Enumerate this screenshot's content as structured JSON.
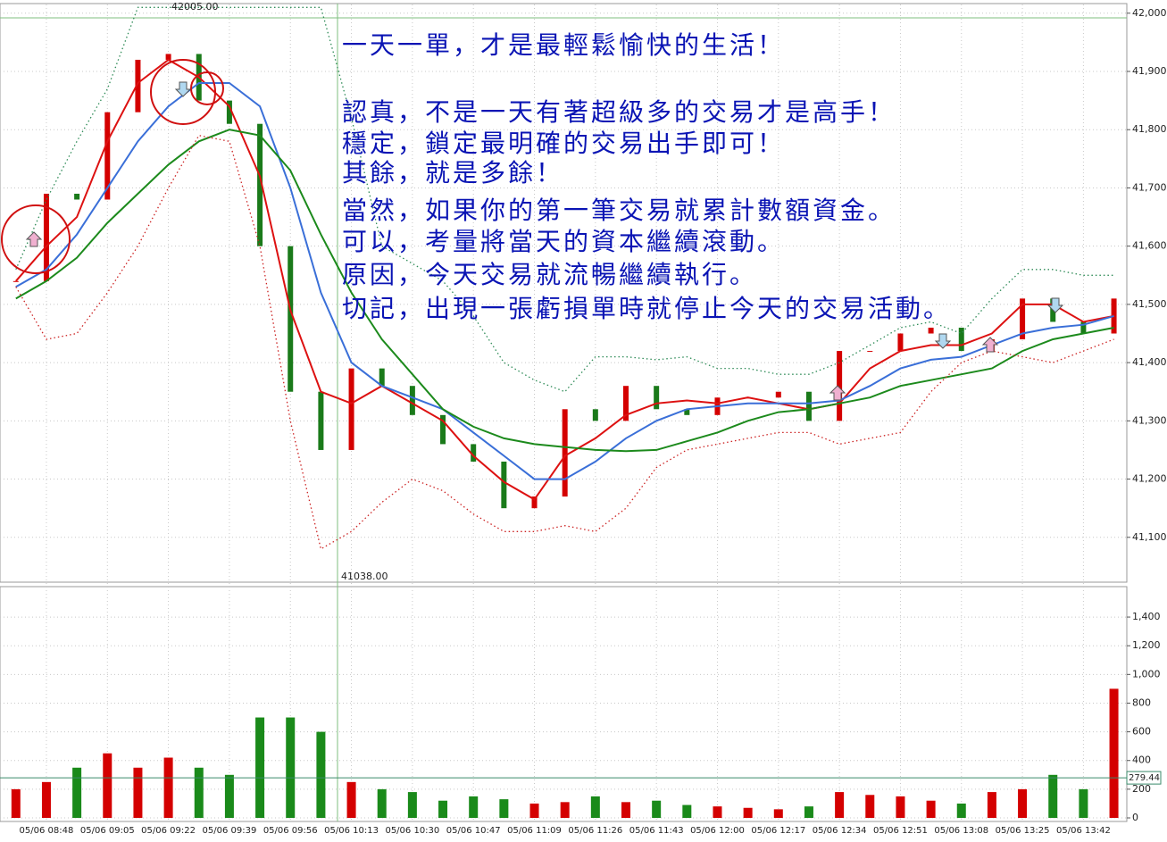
{
  "chart_data": [
    {
      "type": "line",
      "ylim": [
        41023,
        42015
      ],
      "yticks": [
        {
          "value": 41100,
          "label": "41,100"
        },
        {
          "value": 41200,
          "label": "41,200"
        },
        {
          "value": 41300,
          "label": "41,300"
        },
        {
          "value": 41400,
          "label": "41,400"
        },
        {
          "value": 41500,
          "label": "41,500"
        },
        {
          "value": 41600,
          "label": "41,600"
        },
        {
          "value": 41700,
          "label": "41,700"
        },
        {
          "value": 41800,
          "label": "41,800"
        },
        {
          "value": 41900,
          "label": "41,900"
        },
        {
          "value": 42000,
          "label": "42,000"
        }
      ],
      "grid": true,
      "high_label": "42005.00",
      "low_label": "41038.00",
      "annotations": [
        "一天一單，才是最輕鬆愉快的生活！",
        "認真，不是一天有著超級多的交易才是高手！",
        "穩定，鎖定最明確的交易出手即可！",
        "其餘，就是多餘！",
        "當然，如果你的第一筆交易就累計數額資金。",
        "可以，考量將當天的資本繼續滾動。",
        "原因，今天交易就流暢繼續執行。",
        "切記，出現一張虧損單時就停止今天的交易活動。"
      ],
      "series": [
        {
          "color": "#1a7a1a",
          "style": "candle",
          "values": [
            41540,
            41690,
            41680,
            41830,
            41920,
            41930,
            41850,
            41810,
            41600,
            41350,
            41250,
            41390,
            41360,
            41310,
            41260,
            41230,
            41150,
            41170,
            41320,
            41300,
            41360,
            41320,
            41310,
            41340,
            41340,
            41350,
            41300,
            41420,
            41420,
            41450,
            41460,
            41420,
            41440,
            41510,
            41470,
            41450,
            41510
          ]
        },
        {
          "color": "#dd1111",
          "style": "solid",
          "values": [
            41540,
            41600,
            41650,
            41780,
            41880,
            41920,
            41890,
            41840,
            41720,
            41490,
            41350,
            41330,
            41360,
            41330,
            41300,
            41240,
            41195,
            41165,
            41240,
            41270,
            41310,
            41330,
            41335,
            41330,
            41340,
            41330,
            41320,
            41330,
            41390,
            41420,
            41430,
            41430,
            41450,
            41500,
            41500,
            41470,
            41480
          ]
        },
        {
          "color": "#3a6fd8",
          "style": "solid",
          "values": [
            41530,
            41560,
            41620,
            41700,
            41780,
            41840,
            41880,
            41880,
            41840,
            41700,
            41520,
            41400,
            41360,
            41340,
            41320,
            41280,
            41240,
            41200,
            41200,
            41230,
            41270,
            41300,
            41320,
            41325,
            41330,
            41330,
            41330,
            41335,
            41360,
            41390,
            41405,
            41410,
            41430,
            41450,
            41460,
            41465,
            41480
          ]
        },
        {
          "color": "#1c8a1c",
          "style": "solid",
          "values": [
            41510,
            41540,
            41580,
            41640,
            41690,
            41740,
            41780,
            41800,
            41790,
            41730,
            41620,
            41520,
            41440,
            41380,
            41320,
            41290,
            41270,
            41260,
            41255,
            41250,
            41248,
            41250,
            41265,
            41280,
            41300,
            41315,
            41320,
            41330,
            41340,
            41360,
            41370,
            41380,
            41390,
            41420,
            41440,
            41450,
            41460
          ]
        },
        {
          "color": "#2e8b57",
          "style": "dotted",
          "values": [
            41560,
            41680,
            41780,
            41870,
            42010,
            42010,
            42010,
            42010,
            42010,
            42010,
            42010,
            41820,
            41600,
            41570,
            41540,
            41480,
            41400,
            41370,
            41350,
            41410,
            41410,
            41405,
            41410,
            41390,
            41390,
            41380,
            41380,
            41400,
            41430,
            41460,
            41470,
            41450,
            41510,
            41560,
            41560,
            41550,
            41550
          ]
        },
        {
          "color": "#cc2222",
          "style": "dotted",
          "values": [
            41530,
            41440,
            41450,
            41520,
            41600,
            41700,
            41790,
            41780,
            41600,
            41300,
            41080,
            41110,
            41160,
            41200,
            41180,
            41140,
            41110,
            41110,
            41120,
            41110,
            41150,
            41220,
            41250,
            41260,
            41270,
            41280,
            41280,
            41260,
            41270,
            41280,
            41350,
            41400,
            41420,
            41410,
            41400,
            41420,
            41440
          ]
        }
      ]
    },
    {
      "type": "bar",
      "categories": [
        null,
        "05/06 08:48",
        null,
        "05/06 09:05",
        null,
        "05/06 09:22",
        null,
        "05/06 09:39",
        null,
        "05/06 09:56",
        null,
        "05/06 10:13",
        null,
        "05/06 10:30",
        null,
        "05/06 10:47",
        null,
        "05/06 11:09",
        null,
        "05/06 11:26",
        null,
        "05/06 11:43",
        null,
        "05/06 12:00",
        null,
        "05/06 12:17",
        null,
        "05/06 12:34",
        null,
        "05/06 12:51",
        null,
        "05/06 13:08",
        null,
        "05/06 13:25",
        null,
        "05/06 13:42",
        null
      ],
      "values": [
        200,
        250,
        350,
        450,
        350,
        420,
        350,
        300,
        700,
        700,
        600,
        250,
        200,
        180,
        120,
        150,
        130,
        100,
        110,
        150,
        110,
        120,
        90,
        80,
        70,
        60,
        80,
        180,
        160,
        150,
        120,
        100,
        180,
        200,
        300,
        200,
        900
      ],
      "up_color": "#d40000",
      "down_color": "#1a8a1a",
      "ylim": [
        0,
        1500
      ],
      "yticks": [
        0,
        200,
        400,
        600,
        800,
        {
          "value": 1000,
          "label": "1,000"
        },
        {
          "value": 1200,
          "label": "1,200"
        },
        {
          "value": 1400,
          "label": "1,400"
        }
      ],
      "current_label": "279.44",
      "current_value": 279.44
    }
  ]
}
